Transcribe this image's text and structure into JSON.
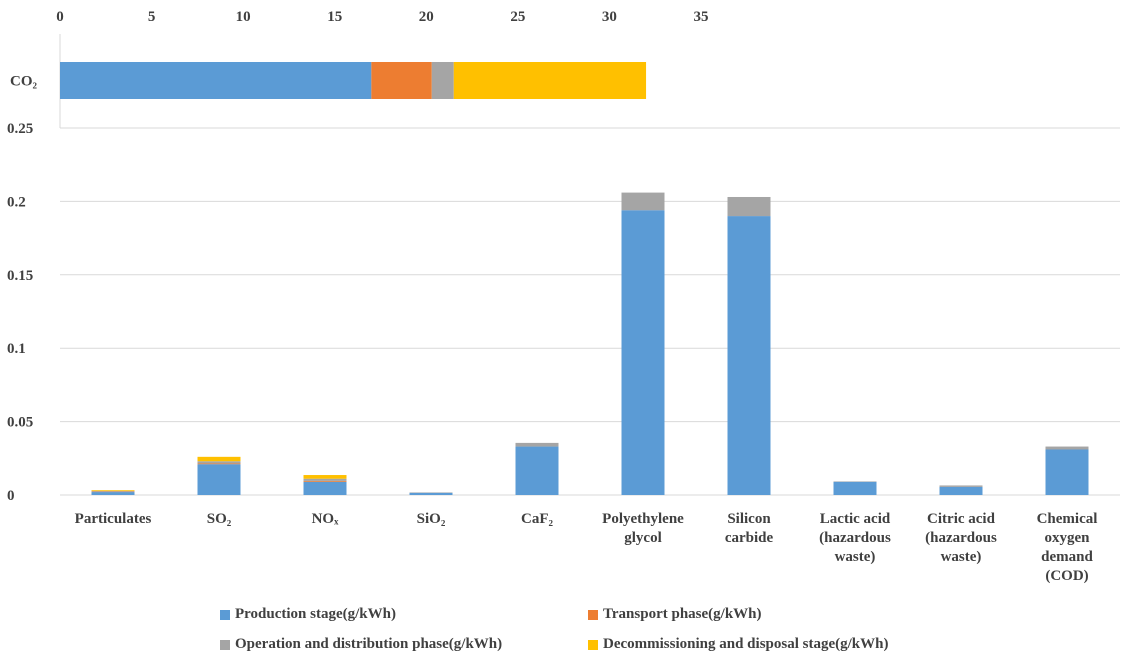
{
  "chart_data": [
    {
      "type": "bar",
      "orientation": "horizontal",
      "stacked": true,
      "categories": [
        "CO₂"
      ],
      "x_ticks": [
        "0",
        "5",
        "10",
        "15",
        "20",
        "25",
        "30",
        "35"
      ],
      "xlim": [
        0,
        35
      ],
      "grid": false,
      "series": [
        {
          "name": "Production stage(g/kWh)",
          "values": [
            17.0
          ],
          "color": "#5B9BD5"
        },
        {
          "name": "Transport phase(g/kWh)",
          "values": [
            3.3
          ],
          "color": "#ED7D31"
        },
        {
          "name": "Operation and distribution phase(g/kWh)",
          "values": [
            1.2
          ],
          "color": "#A5A5A5"
        },
        {
          "name": "Decommissioning and disposal stage(g/kWh)",
          "values": [
            10.5
          ],
          "color": "#FFC000"
        }
      ]
    },
    {
      "type": "bar",
      "stacked": true,
      "categories": [
        [
          "Particulates"
        ],
        [
          "SO₂"
        ],
        [
          "NOₓ"
        ],
        [
          "SiO₂"
        ],
        [
          "CaF₂"
        ],
        [
          "Polyethylene",
          "glycol"
        ],
        [
          "Silicon",
          "carbide"
        ],
        [
          "Lactic acid",
          "(hazardous",
          "waste)"
        ],
        [
          "Citric acid",
          "(hazardous",
          "waste)"
        ],
        [
          "Chemical",
          "oxygen",
          "demand",
          "(COD)"
        ]
      ],
      "y_ticks": [
        "0",
        "0.05",
        "0.1",
        "0.15",
        "0.2",
        "0.25"
      ],
      "ylim": [
        0,
        0.25
      ],
      "grid": true,
      "legend": "bottom",
      "series": [
        {
          "name": "Production stage(g/kWh)",
          "color": "#5B9BD5",
          "values": [
            0.002,
            0.021,
            0.009,
            0.0015,
            0.033,
            0.194,
            0.19,
            0.009,
            0.0055,
            0.031
          ]
        },
        {
          "name": "Transport phase(g/kWh)",
          "color": "#ED7D31",
          "values": [
            0.0003,
            0.0005,
            0.0006,
            0,
            0,
            0,
            0,
            0,
            0,
            0
          ]
        },
        {
          "name": "Operation and distribution phase(g/kWh)",
          "color": "#A5A5A5",
          "values": [
            0.0005,
            0.0015,
            0.0015,
            0.0003,
            0.0025,
            0.012,
            0.013,
            0.0003,
            0.001,
            0.002
          ]
        },
        {
          "name": "Decommissioning and disposal stage(g/kWh)",
          "color": "#FFC000",
          "values": [
            0.0005,
            0.003,
            0.0025,
            0,
            0,
            0,
            0,
            0,
            0,
            0
          ]
        }
      ]
    }
  ]
}
